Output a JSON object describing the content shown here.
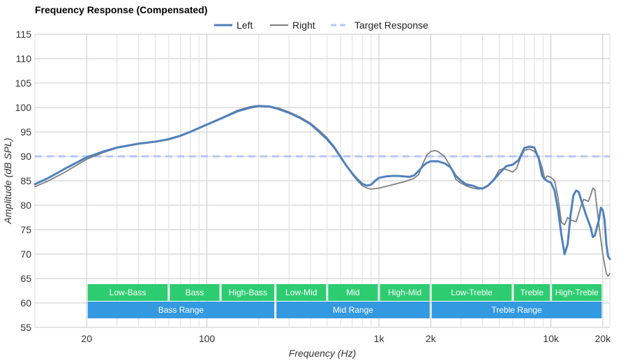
{
  "chart_data": {
    "type": "line",
    "title": "Frequency Response (Compensated)",
    "xlabel": "Frequency (Hz)",
    "ylabel": "Amplitude (dB SPL)",
    "x_scale": "log",
    "xlim": [
      10,
      22000
    ],
    "ylim": [
      55,
      115
    ],
    "y_ticks": [
      55,
      60,
      65,
      70,
      75,
      80,
      85,
      90,
      95,
      100,
      105,
      110,
      115
    ],
    "x_ticks": [
      {
        "value": 20,
        "label": "20"
      },
      {
        "value": 100,
        "label": "100"
      },
      {
        "value": 1000,
        "label": "1k"
      },
      {
        "value": 2000,
        "label": "2k"
      },
      {
        "value": 10000,
        "label": "10k"
      },
      {
        "value": 20000,
        "label": "20k"
      }
    ],
    "grid": true,
    "legend": "top-center",
    "series": [
      {
        "name": "Left",
        "color": "#4f81bd",
        "style": "solid",
        "points": [
          [
            10,
            84.3
          ],
          [
            12,
            85.6
          ],
          [
            15,
            87.5
          ],
          [
            20,
            89.8
          ],
          [
            25,
            91.0
          ],
          [
            30,
            91.8
          ],
          [
            40,
            92.6
          ],
          [
            50,
            93.0
          ],
          [
            60,
            93.5
          ],
          [
            70,
            94.2
          ],
          [
            80,
            95.0
          ],
          [
            100,
            96.5
          ],
          [
            120,
            97.7
          ],
          [
            150,
            99.2
          ],
          [
            180,
            100.0
          ],
          [
            200,
            100.3
          ],
          [
            230,
            100.2
          ],
          [
            260,
            99.7
          ],
          [
            300,
            98.9
          ],
          [
            350,
            97.8
          ],
          [
            400,
            96.6
          ],
          [
            450,
            95.0
          ],
          [
            500,
            93.5
          ],
          [
            550,
            91.8
          ],
          [
            600,
            89.8
          ],
          [
            650,
            88.0
          ],
          [
            700,
            86.5
          ],
          [
            750,
            85.3
          ],
          [
            800,
            84.4
          ],
          [
            850,
            84.0
          ],
          [
            900,
            84.2
          ],
          [
            950,
            85.0
          ],
          [
            1000,
            85.6
          ],
          [
            1100,
            85.9
          ],
          [
            1200,
            86.0
          ],
          [
            1300,
            86.0
          ],
          [
            1400,
            85.9
          ],
          [
            1500,
            85.8
          ],
          [
            1600,
            86.1
          ],
          [
            1700,
            87.0
          ],
          [
            1800,
            88.0
          ],
          [
            1900,
            88.7
          ],
          [
            2000,
            89.0
          ],
          [
            2200,
            89.0
          ],
          [
            2400,
            88.6
          ],
          [
            2600,
            87.8
          ],
          [
            2800,
            86.0
          ],
          [
            3000,
            85.0
          ],
          [
            3200,
            84.3
          ],
          [
            3500,
            84.0
          ],
          [
            3800,
            83.5
          ],
          [
            4000,
            83.4
          ],
          [
            4300,
            84.0
          ],
          [
            4600,
            85.0
          ],
          [
            5000,
            86.5
          ],
          [
            5500,
            88.0
          ],
          [
            6000,
            88.3
          ],
          [
            6500,
            89.3
          ],
          [
            7000,
            91.7
          ],
          [
            7500,
            92.0
          ],
          [
            8000,
            91.8
          ],
          [
            8500,
            89.5
          ],
          [
            8900,
            86.0
          ],
          [
            9200,
            85.3
          ],
          [
            9500,
            85.0
          ],
          [
            10000,
            84.6
          ],
          [
            10500,
            83.0
          ],
          [
            11000,
            79.0
          ],
          [
            11500,
            74.0
          ],
          [
            12000,
            70.0
          ],
          [
            12500,
            72.0
          ],
          [
            13000,
            78.0
          ],
          [
            13500,
            82.0
          ],
          [
            14000,
            83.0
          ],
          [
            14500,
            82.7
          ],
          [
            15000,
            81.0
          ],
          [
            16000,
            78.0
          ],
          [
            17000,
            75.5
          ],
          [
            17500,
            73.5
          ],
          [
            18000,
            73.8
          ],
          [
            19000,
            77.0
          ],
          [
            19500,
            79.5
          ],
          [
            20000,
            79.0
          ],
          [
            20500,
            77.0
          ],
          [
            21000,
            72.0
          ],
          [
            21500,
            69.5
          ],
          [
            22000,
            69.0
          ]
        ]
      },
      {
        "name": "Right",
        "color": "#7f7f7f",
        "style": "solid",
        "points": [
          [
            10,
            83.8
          ],
          [
            12,
            85.0
          ],
          [
            15,
            86.8
          ],
          [
            20,
            89.4
          ],
          [
            25,
            90.8
          ],
          [
            30,
            91.7
          ],
          [
            40,
            92.5
          ],
          [
            50,
            93.0
          ],
          [
            60,
            93.6
          ],
          [
            70,
            94.3
          ],
          [
            80,
            95.1
          ],
          [
            100,
            96.6
          ],
          [
            120,
            97.8
          ],
          [
            150,
            99.4
          ],
          [
            180,
            100.2
          ],
          [
            200,
            100.4
          ],
          [
            230,
            100.3
          ],
          [
            260,
            99.9
          ],
          [
            300,
            99.1
          ],
          [
            350,
            98.0
          ],
          [
            400,
            96.8
          ],
          [
            450,
            95.3
          ],
          [
            500,
            93.8
          ],
          [
            550,
            92.0
          ],
          [
            600,
            90.0
          ],
          [
            650,
            88.0
          ],
          [
            700,
            86.3
          ],
          [
            750,
            85.0
          ],
          [
            800,
            84.0
          ],
          [
            850,
            83.5
          ],
          [
            900,
            83.3
          ],
          [
            1000,
            83.5
          ],
          [
            1200,
            84.2
          ],
          [
            1400,
            84.8
          ],
          [
            1600,
            85.5
          ],
          [
            1700,
            86.3
          ],
          [
            1800,
            88.5
          ],
          [
            1900,
            90.3
          ],
          [
            2000,
            91.0
          ],
          [
            2100,
            91.2
          ],
          [
            2200,
            91.0
          ],
          [
            2400,
            90.0
          ],
          [
            2600,
            88.0
          ],
          [
            2800,
            85.3
          ],
          [
            3000,
            84.5
          ],
          [
            3200,
            84.0
          ],
          [
            3500,
            83.5
          ],
          [
            3800,
            83.3
          ],
          [
            4000,
            83.5
          ],
          [
            4300,
            84.0
          ],
          [
            4600,
            85.0
          ],
          [
            5000,
            87.2
          ],
          [
            5300,
            87.5
          ],
          [
            5600,
            87.2
          ],
          [
            6000,
            86.8
          ],
          [
            6300,
            87.5
          ],
          [
            6700,
            90.0
          ],
          [
            7000,
            91.2
          ],
          [
            7500,
            91.5
          ],
          [
            8000,
            91.0
          ],
          [
            8500,
            89.8
          ],
          [
            9000,
            87.0
          ],
          [
            9200,
            85.3
          ],
          [
            9500,
            86.0
          ],
          [
            10000,
            85.7
          ],
          [
            10500,
            85.0
          ],
          [
            11000,
            81.5
          ],
          [
            11500,
            76.5
          ],
          [
            12000,
            76.0
          ],
          [
            12500,
            77.5
          ],
          [
            13000,
            77.0
          ],
          [
            14000,
            76.6
          ],
          [
            15000,
            80.0
          ],
          [
            15500,
            81.2
          ],
          [
            16000,
            81.0
          ],
          [
            16500,
            80.8
          ],
          [
            17000,
            82.0
          ],
          [
            17500,
            83.5
          ],
          [
            18000,
            83.2
          ],
          [
            19000,
            76.0
          ],
          [
            20000,
            70.0
          ],
          [
            21000,
            66.0
          ],
          [
            21500,
            65.5
          ],
          [
            22000,
            66.0
          ]
        ]
      },
      {
        "name": "Target Response",
        "color": "#b4c7f5",
        "style": "dashed",
        "points": [
          [
            10,
            90
          ],
          [
            22000,
            90
          ]
        ]
      }
    ],
    "bands_top": [
      {
        "label": "Low-Bass",
        "from": 20,
        "to": 60
      },
      {
        "label": "Bass",
        "from": 60,
        "to": 120
      },
      {
        "label": "High-Bass",
        "from": 120,
        "to": 250
      },
      {
        "label": "Low-Mid",
        "from": 250,
        "to": 500
      },
      {
        "label": "Mid",
        "from": 500,
        "to": 1000
      },
      {
        "label": "High-Mid",
        "from": 1000,
        "to": 2000
      },
      {
        "label": "Low-Treble",
        "from": 2000,
        "to": 6000
      },
      {
        "label": "Treble",
        "from": 6000,
        "to": 10000
      },
      {
        "label": "High-Treble",
        "from": 10000,
        "to": 20000
      }
    ],
    "bands_bottom": [
      {
        "label": "Bass Range",
        "from": 20,
        "to": 250
      },
      {
        "label": "Mid Range",
        "from": 250,
        "to": 2000
      },
      {
        "label": "Treble Range",
        "from": 2000,
        "to": 20000
      }
    ],
    "band_colors": {
      "top": "#2ecc71",
      "bottom": "#3399e0"
    },
    "grid_colors": {
      "major": "#c8c8c8",
      "minor": "#dedede"
    }
  }
}
